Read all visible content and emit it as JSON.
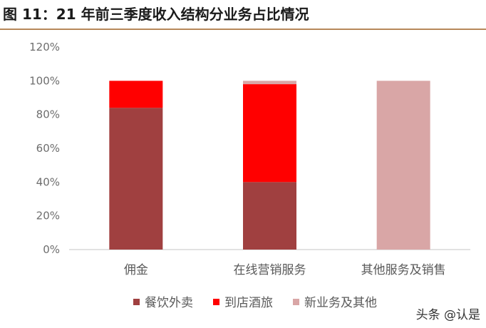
{
  "title": "图 11：21 年前三季度收入结构分业务占比情况",
  "watermark": "头条 @认是",
  "chart_data": {
    "type": "bar",
    "stacked": true,
    "categories": [
      "佣金",
      "在线营销服务",
      "其他服务及销售"
    ],
    "series": [
      {
        "name": "餐饮外卖",
        "color": "#a04040",
        "values": [
          84,
          40,
          0
        ]
      },
      {
        "name": "到店酒旅",
        "color": "#ff0000",
        "values": [
          16,
          58,
          0
        ]
      },
      {
        "name": "新业务及其他",
        "color": "#d9a6a6",
        "values": [
          0,
          2,
          100
        ]
      }
    ],
    "ylim": [
      0,
      120
    ],
    "yticks": [
      "0%",
      "20%",
      "40%",
      "60%",
      "80%",
      "100%",
      "120%"
    ],
    "grid": false,
    "legend_position": "bottom"
  }
}
